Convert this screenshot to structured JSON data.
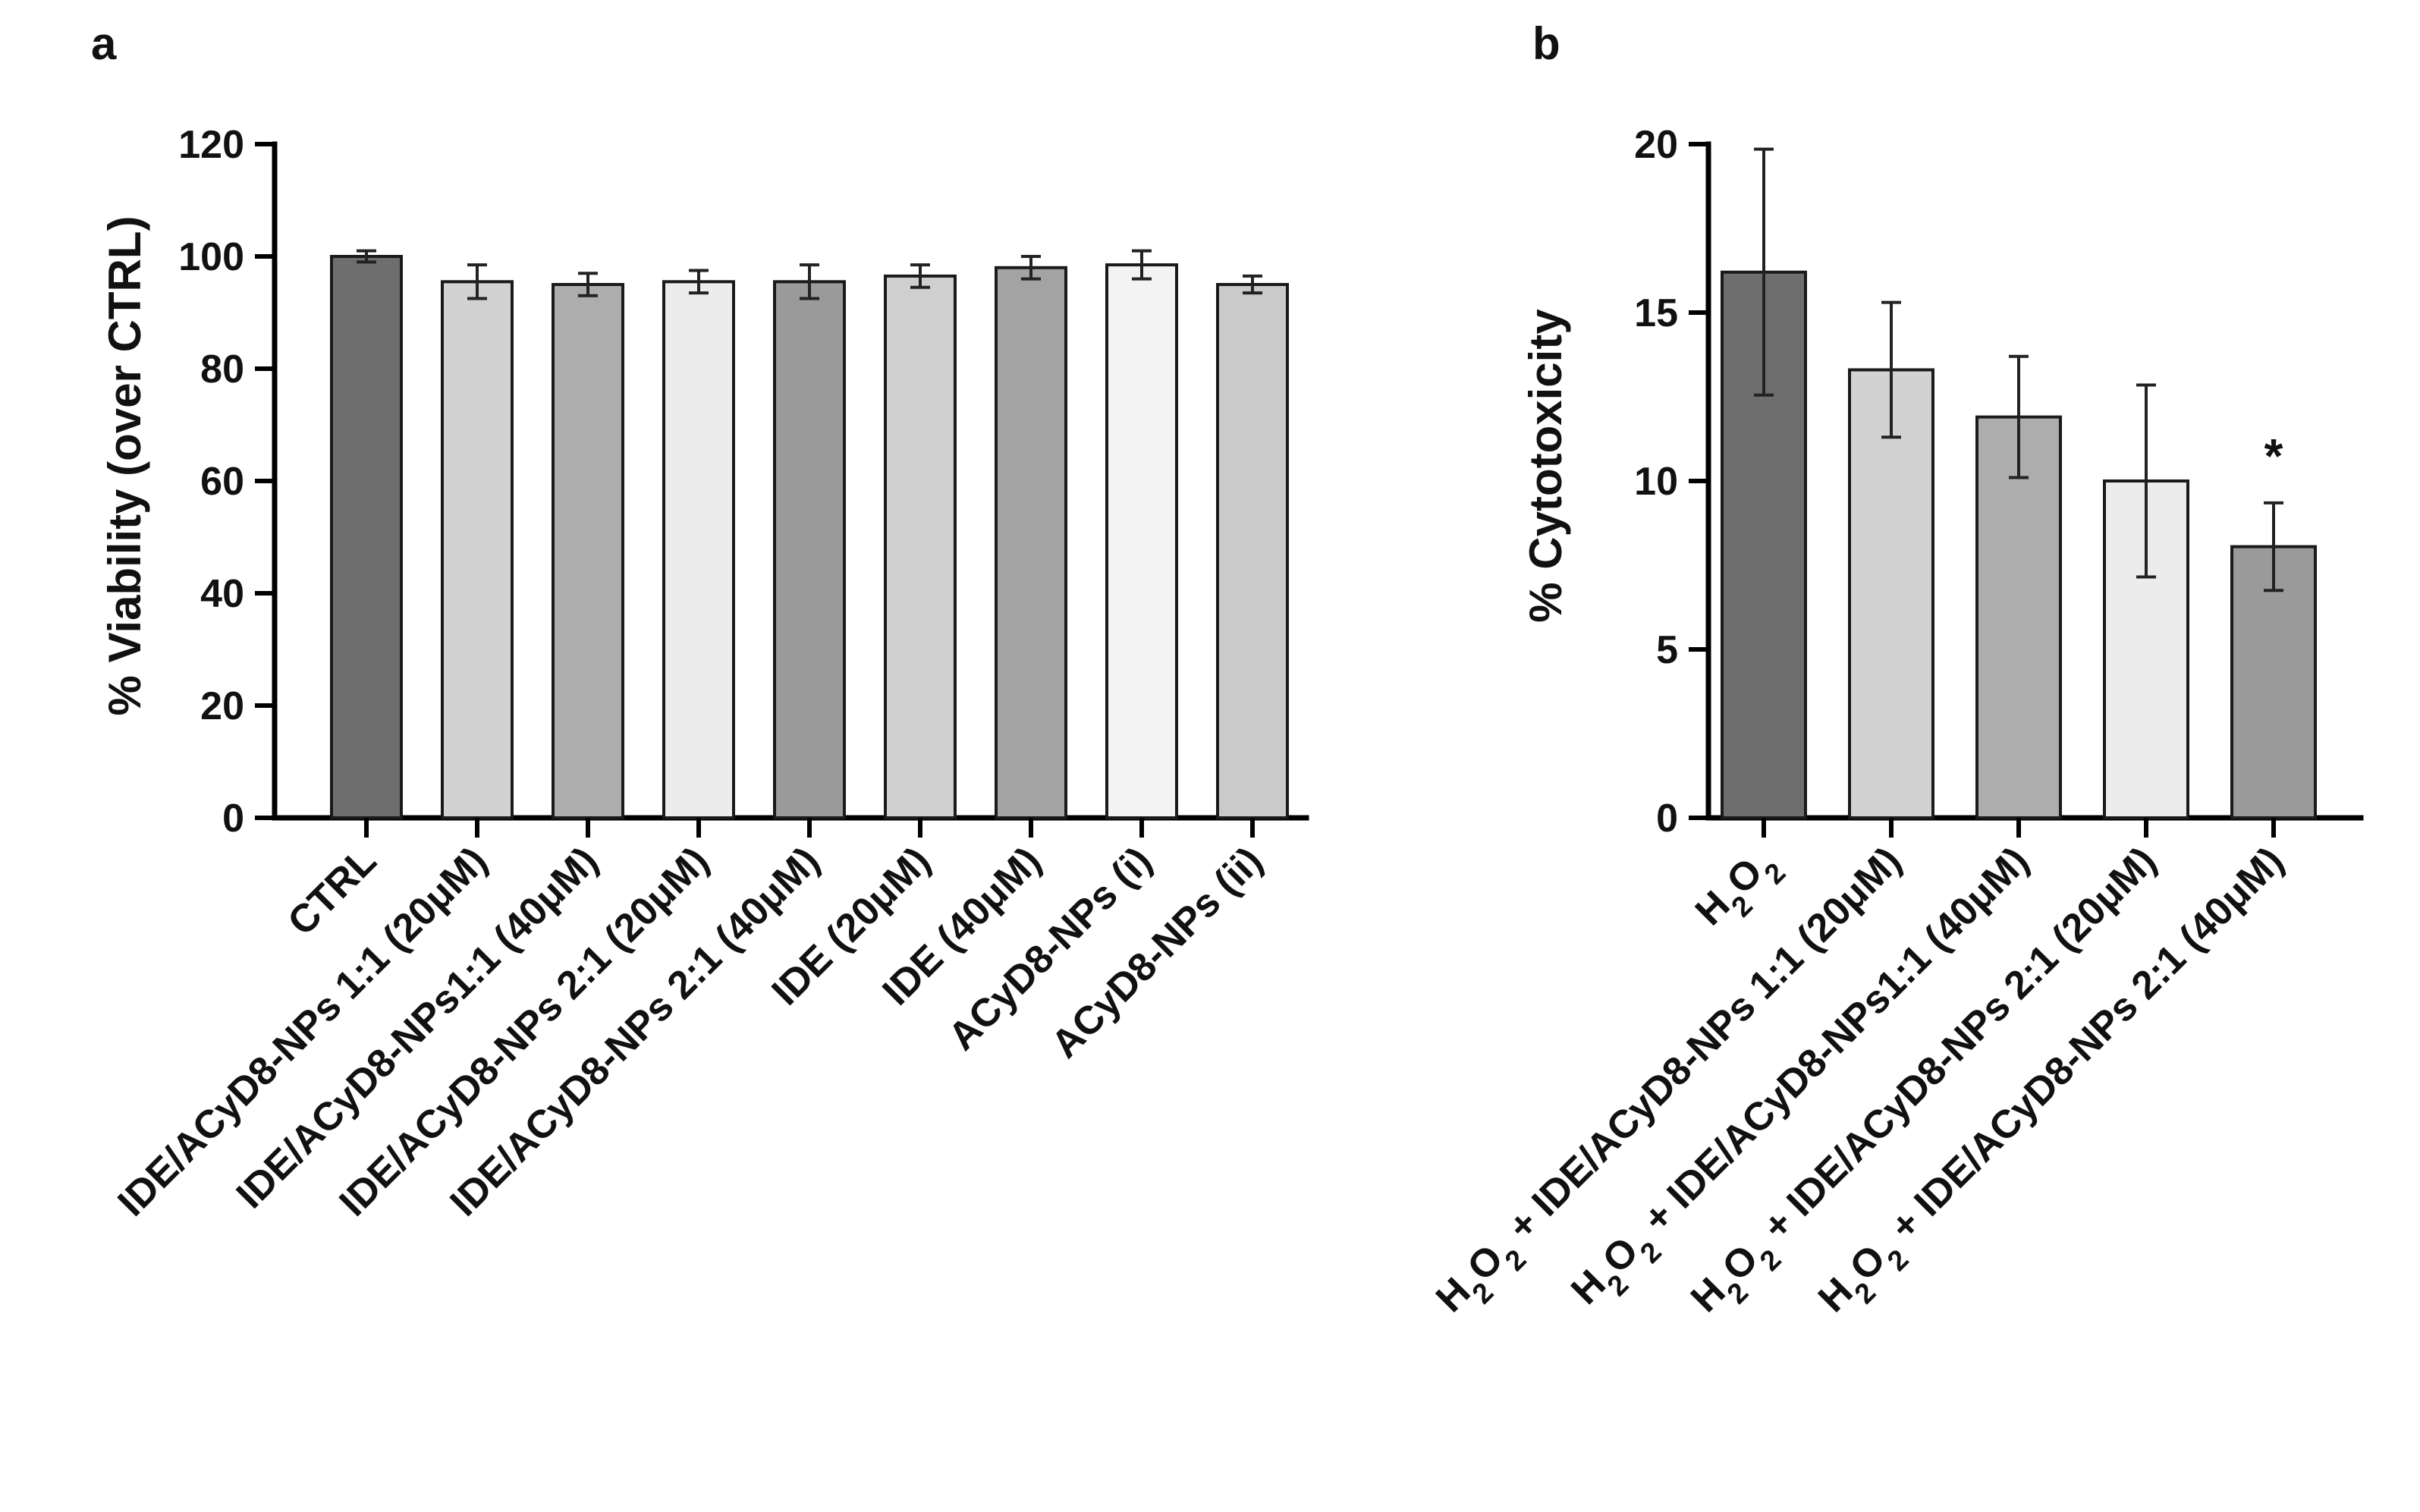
{
  "chart_data": [
    {
      "panel": "a",
      "type": "bar",
      "ylabel": "% Viability (over CTRL)",
      "ylim": [
        0,
        120
      ],
      "yticks": [
        0,
        20,
        40,
        60,
        80,
        100,
        120
      ],
      "categories": [
        "CTRL",
        "IDE/ACyD8-NPs 1:1 (20μM)",
        "IDE/ACyD8-NPs1:1 (40μM)",
        "IDE/ACyD8-NPs 2:1 (20μM)",
        "IDE/ACyD8-NPs 2:1 (40μM)",
        "IDE (20μM)",
        "IDE (40μM)",
        "ACyD8-NPs (i)",
        "ACyD8-NPs (ii)"
      ],
      "values": [
        100,
        95.5,
        95,
        95.5,
        95.5,
        96.5,
        98,
        98.5,
        95
      ],
      "errors": [
        1,
        3,
        2,
        2,
        3,
        2,
        2,
        2.5,
        1.5
      ],
      "colors": [
        "#6e6e6e",
        "#d2d2d2",
        "#adadad",
        "#ececec",
        "#9a9a9a",
        "#cfcfcf",
        "#a3a3a3",
        "#f3f3f3",
        "#cacaca"
      ],
      "annotations": []
    },
    {
      "panel": "b",
      "type": "bar",
      "ylabel": "% Cytotoxicity",
      "ylim": [
        0,
        20
      ],
      "yticks": [
        0,
        5,
        10,
        15,
        20
      ],
      "categories": [
        "H₂O₂",
        "H₂O₂ + IDE/ACyD8-NPs 1:1 (20μM)",
        "H₂O₂ + IDE/ACyD8-NPs1:1 (40μM)",
        "H₂O₂ + IDE/ACyD8-NPs 2:1 (20μM)",
        "H₂O₂ + IDE/ACyD8-NPs 2:1 (40μM)"
      ],
      "values": [
        16.2,
        13.3,
        11.9,
        10.0,
        8.05
      ],
      "errors": [
        3.65,
        2.0,
        1.8,
        2.85,
        1.3
      ],
      "colors": [
        "#6e6e6e",
        "#d2d2d2",
        "#adadad",
        "#ececec",
        "#9a9a9a"
      ],
      "annotations": [
        {
          "index": 4,
          "text": "*"
        }
      ]
    }
  ]
}
